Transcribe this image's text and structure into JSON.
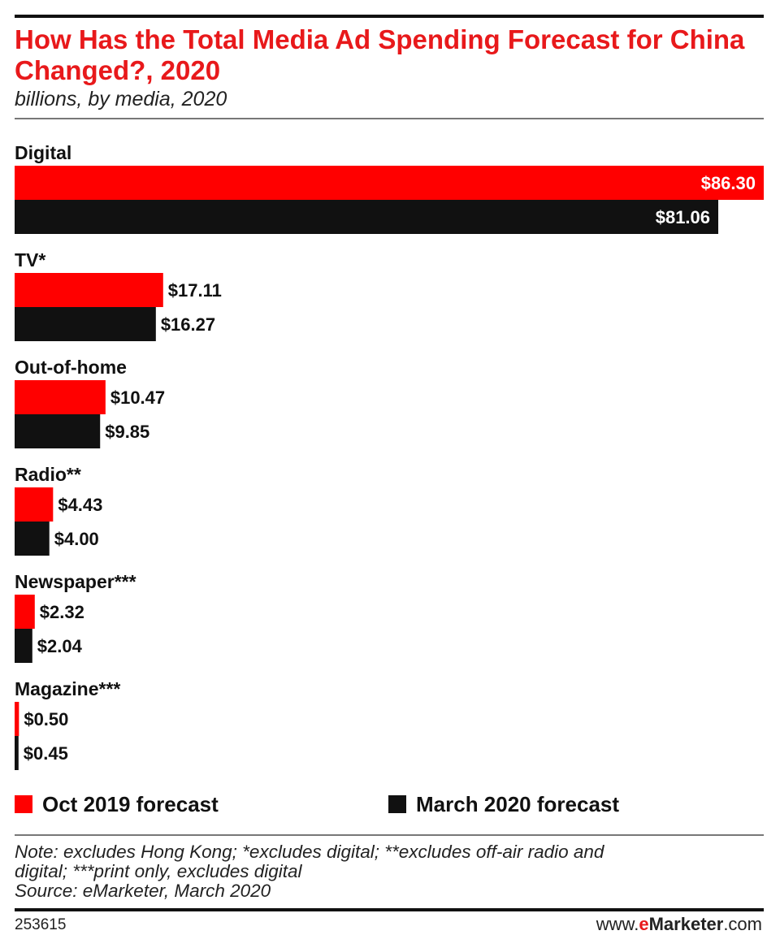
{
  "header": {
    "title": "How Has the Total Media Ad Spending Forecast for China Changed?, 2020",
    "subtitle": "billions, by media, 2020"
  },
  "colors": {
    "oct2019": "#ff0000",
    "march2020": "#111111",
    "title": "#e8191b"
  },
  "legend": {
    "series_a": "Oct 2019 forecast",
    "series_b": "March 2020 forecast"
  },
  "footer": {
    "note_line1": "Note: excludes Hong Kong; *excludes digital; **excludes off-air radio and",
    "note_line2": "digital; ***print only, excludes digital",
    "source": "Source: eMarketer, March 2020",
    "chart_id": "253615",
    "brand_prefix": "www.",
    "brand_e": "e",
    "brand_rest": "Marketer",
    "brand_suffix": ".com"
  },
  "chart_data": {
    "type": "bar",
    "orientation": "horizontal",
    "title": "How Has the Total Media Ad Spending Forecast for China Changed?, 2020",
    "subtitle": "billions, by media, 2020",
    "categories": [
      "Digital",
      "TV*",
      "Out-of-home",
      "Radio**",
      "Newspaper***",
      "Magazine***"
    ],
    "series": [
      {
        "name": "Oct 2019 forecast",
        "values": [
          86.3,
          17.11,
          10.47,
          4.43,
          2.32,
          0.5
        ],
        "labels": [
          "$86.30",
          "$17.11",
          "$10.47",
          "$4.43",
          "$2.32",
          "$0.50"
        ]
      },
      {
        "name": "March 2020 forecast",
        "values": [
          81.06,
          16.27,
          9.85,
          4.0,
          2.04,
          0.45
        ],
        "labels": [
          "$81.06",
          "$16.27",
          "$9.85",
          "$4.00",
          "$2.04",
          "$0.45"
        ]
      }
    ],
    "xlim": [
      0,
      86.3
    ],
    "grid": false,
    "legend_position": "bottom"
  }
}
